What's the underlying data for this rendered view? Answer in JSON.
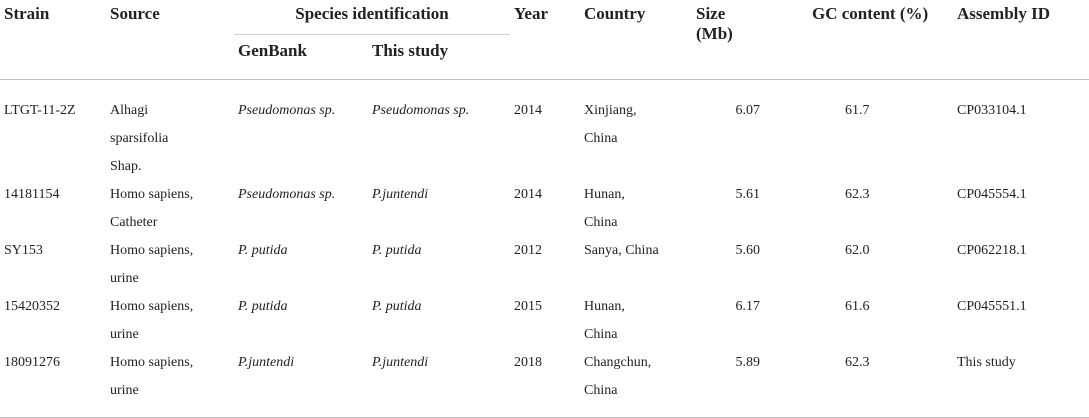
{
  "headers": {
    "strain": "Strain",
    "source": "Source",
    "species_identification": "Species identification",
    "genbank": "GenBank",
    "this_study": "This study",
    "year": "Year",
    "country": "Country",
    "size": "Size (Mb)",
    "gc": "GC content (%)",
    "assembly": "Assembly ID"
  },
  "rows": [
    {
      "strain": "LTGT-11-2Z",
      "source": [
        "Alhagi",
        "sparsifolia",
        "Shap."
      ],
      "genbank": "Pseudomonas sp.",
      "this_study": "Pseudomonas sp.",
      "year": "2014",
      "country": [
        "Xinjiang,",
        "China"
      ],
      "size": "6.07",
      "gc": "61.7",
      "assembly": "CP033104.1"
    },
    {
      "strain": "14181154",
      "source": [
        "Homo sapiens,",
        "Catheter"
      ],
      "genbank": "Pseudomonas sp.",
      "this_study": "P.juntendi",
      "year": "2014",
      "country": [
        "Hunan,",
        "China"
      ],
      "size": "5.61",
      "gc": "62.3",
      "assembly": "CP045554.1"
    },
    {
      "strain": "SY153",
      "source": [
        "Homo sapiens,",
        "urine"
      ],
      "genbank": "P. putida",
      "this_study": "P. putida",
      "year": "2012",
      "country": [
        "Sanya, China"
      ],
      "size": "5.60",
      "gc": "62.0",
      "assembly": "CP062218.1"
    },
    {
      "strain": "15420352",
      "source": [
        "Homo sapiens,",
        "urine"
      ],
      "genbank": "P. putida",
      "this_study": "P. putida",
      "year": "2015",
      "country": [
        "Hunan,",
        "China"
      ],
      "size": "6.17",
      "gc": "61.6",
      "assembly": "CP045551.1"
    },
    {
      "strain": "18091276",
      "source": [
        "Homo sapiens,",
        "urine"
      ],
      "genbank": "P.juntendi",
      "this_study": "P.juntendi",
      "year": "2018",
      "country": [
        "Changchun,",
        "China"
      ],
      "size": "5.89",
      "gc": "62.3",
      "assembly": "This study"
    }
  ]
}
